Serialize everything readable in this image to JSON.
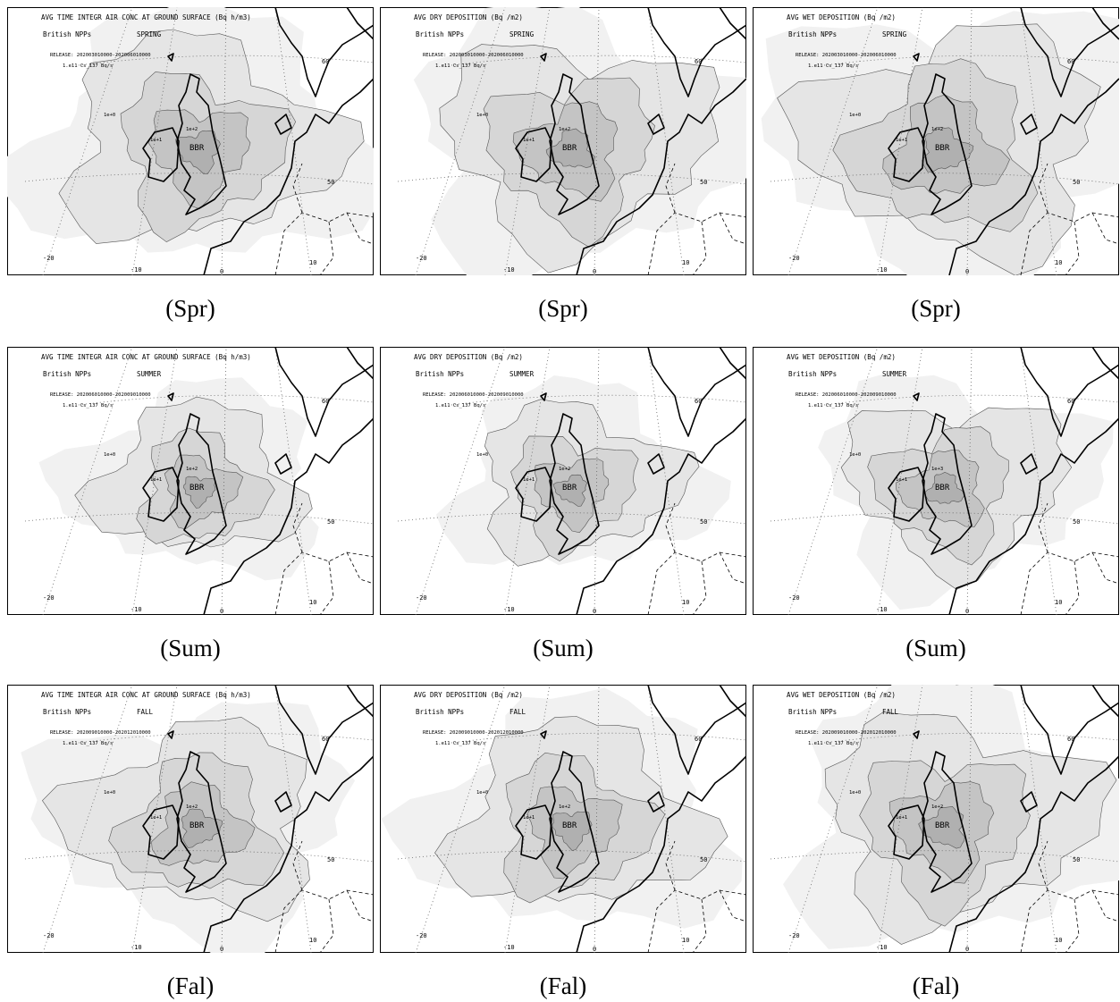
{
  "panels": [
    {
      "title": "AVG TIME INTEGR AIR CONC AT GROUND SURFACE (Bq h/m3)",
      "source": "British NPPs",
      "season": "SPRING",
      "release": "RELEASE: 202003010000-202006010000",
      "emission": "1.e11 Cs_137 Bq/s",
      "site": "BBR",
      "contour_labels": [
        "1e+0",
        "1e+1",
        "1e+2"
      ],
      "caption": "(Spr)"
    },
    {
      "title": "AVG DRY DEPOSITION (Bq /m2)",
      "source": "British NPPs",
      "season": "SPRING",
      "release": "RELEASE: 202003010000-202006010000",
      "emission": "1.e11 Cs_137 Bq/s",
      "site": "BBR",
      "contour_labels": [
        "1e+0",
        "1e+1",
        "1e+2"
      ],
      "caption": "(Spr)"
    },
    {
      "title": "AVG WET DEPOSITION (Bq /m2)",
      "source": "British NPPs",
      "season": "SPRING",
      "release": "RELEASE: 202003010000-202006010000",
      "emission": "1.e11 Cs_137 Bq/s",
      "site": "BBR",
      "contour_labels": [
        "1e+0",
        "1e+1",
        "1e+2"
      ],
      "caption": "(Spr)"
    },
    {
      "title": "AVG TIME INTEGR AIR CONC AT GROUND SURFACE (Bq h/m3)",
      "source": "British NPPs",
      "season": "SUMMER",
      "release": "RELEASE: 202006010000-202009010000",
      "emission": "1.e11 Cs_137 Bq/s",
      "site": "BBR",
      "contour_labels": [
        "1e+0",
        "1e+1",
        "1e+2"
      ],
      "caption": "(Sum)"
    },
    {
      "title": "AVG DRY DEPOSITION (Bq /m2)",
      "source": "British NPPs",
      "season": "SUMMER",
      "release": "RELEASE: 202006010000-202009010000",
      "emission": "1.e11 Cs_137 Bq/s",
      "site": "BBR",
      "contour_labels": [
        "1e+0",
        "1e+1",
        "1e+2"
      ],
      "caption": "(Sum)"
    },
    {
      "title": "AVG WET DEPOSITION (Bq /m2)",
      "source": "British NPPs",
      "season": "SUMMER",
      "release": "RELEASE: 202006010000-202009010000",
      "emission": "1.e11 Cs_137 Bq/s",
      "site": "BBR",
      "contour_labels": [
        "1e+0",
        "1e+1",
        "1e+3"
      ],
      "caption": "(Sum)"
    },
    {
      "title": "AVG TIME INTEGR AIR CONC AT GROUND SURFACE (Bq h/m3)",
      "source": "British NPPs",
      "season": "FALL",
      "release": "RELEASE: 202009010000-202012010000",
      "emission": "1.e11 Cs_137 Bq/s",
      "site": "BBR",
      "contour_labels": [
        "1e+0",
        "1e+1",
        "1e+2"
      ],
      "caption": "(Fal)"
    },
    {
      "title": "AVG DRY DEPOSITION (Bq /m2)",
      "source": "British NPPs",
      "season": "FALL",
      "release": "RELEASE: 202009010000-202012010000",
      "emission": "1.e11 Cs_137 Bq/s",
      "site": "BBR",
      "contour_labels": [
        "1e+0",
        "1e+1",
        "1e+2"
      ],
      "caption": "(Fal)"
    },
    {
      "title": "AVG WET DEPOSITION (Bq /m2)",
      "source": "British NPPs",
      "season": "FALL",
      "release": "RELEASE: 202009010000-202012010000",
      "emission": "1.e11 Cs_137 Bq/s",
      "site": "BBR",
      "contour_labels": [
        "1e+0",
        "1e+1",
        "1e+2"
      ],
      "caption": "(Fal)"
    }
  ],
  "map_labels": {
    "lat": [
      "60",
      "50"
    ],
    "lon": [
      "-20",
      "-10",
      "0",
      "10"
    ]
  }
}
